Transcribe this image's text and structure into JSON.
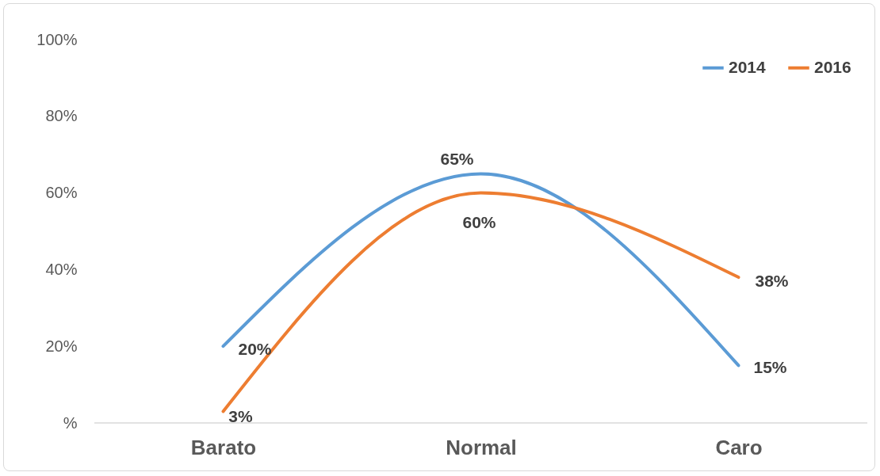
{
  "chart_data": {
    "type": "line",
    "categories": [
      "Barato",
      "Normal",
      "Caro"
    ],
    "series": [
      {
        "name": "2014",
        "color": "#5b9bd5",
        "values": [
          20,
          65,
          15
        ],
        "value_labels": [
          "20%",
          "65%",
          "15%"
        ]
      },
      {
        "name": "2016",
        "color": "#ed7d31",
        "values": [
          3,
          60,
          38
        ],
        "value_labels": [
          "3%",
          "60%",
          "38%"
        ]
      }
    ],
    "ylim": [
      0,
      100
    ],
    "yticks": [
      {
        "value": 0,
        "label": "%"
      },
      {
        "value": 20,
        "label": "20%"
      },
      {
        "value": 40,
        "label": "40%"
      },
      {
        "value": 60,
        "label": "60%"
      },
      {
        "value": 80,
        "label": "80%"
      },
      {
        "value": 100,
        "label": "100%"
      }
    ],
    "grid": false,
    "legend": "top right",
    "marker": "none",
    "line_style": "solid"
  }
}
